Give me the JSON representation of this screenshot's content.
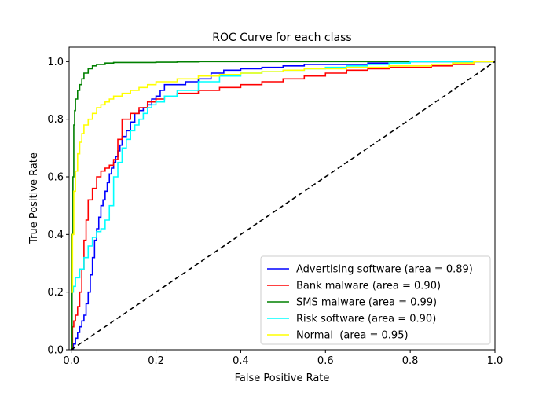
{
  "chart_data": {
    "type": "line",
    "title": "ROC Curve for each class",
    "xlabel": "False Positive Rate",
    "ylabel": "True Positive Rate",
    "xlim": [
      -0.005,
      1.0
    ],
    "ylim": [
      0.0,
      1.05
    ],
    "xticks": [
      0.0,
      0.2,
      0.4,
      0.6,
      0.8,
      1.0
    ],
    "xtick_labels": [
      "0.0",
      "0.2",
      "0.4",
      "0.6",
      "0.8",
      "1.0"
    ],
    "yticks": [
      0.0,
      0.2,
      0.4,
      0.6,
      0.8,
      1.0
    ],
    "ytick_labels": [
      "0.0",
      "0.2",
      "0.4",
      "0.6",
      "0.8",
      "1.0"
    ],
    "grid": false,
    "legend_position": "lower-right",
    "series": [
      {
        "name": "Advertising software (area = 0.89)",
        "color": "#0000ff",
        "step": true,
        "x": [
          0.0,
          0.005,
          0.01,
          0.015,
          0.02,
          0.025,
          0.03,
          0.035,
          0.04,
          0.045,
          0.05,
          0.055,
          0.06,
          0.065,
          0.07,
          0.075,
          0.08,
          0.085,
          0.09,
          0.095,
          0.1,
          0.105,
          0.11,
          0.115,
          0.12,
          0.13,
          0.14,
          0.15,
          0.16,
          0.17,
          0.18,
          0.19,
          0.2,
          0.21,
          0.22,
          0.24,
          0.27,
          0.3,
          0.33,
          0.36,
          0.4,
          0.45,
          0.5,
          0.55,
          0.6,
          0.65,
          0.7,
          0.75,
          0.8,
          0.85,
          0.9,
          0.95,
          1.0
        ],
        "y": [
          0.0,
          0.02,
          0.04,
          0.06,
          0.08,
          0.1,
          0.12,
          0.16,
          0.2,
          0.26,
          0.32,
          0.38,
          0.42,
          0.46,
          0.5,
          0.52,
          0.55,
          0.58,
          0.61,
          0.63,
          0.65,
          0.67,
          0.69,
          0.71,
          0.74,
          0.76,
          0.79,
          0.82,
          0.83,
          0.84,
          0.85,
          0.87,
          0.88,
          0.9,
          0.92,
          0.92,
          0.93,
          0.94,
          0.96,
          0.97,
          0.975,
          0.98,
          0.985,
          0.99,
          0.99,
          0.99,
          0.995,
          0.995,
          1.0,
          1.0,
          1.0,
          1.0,
          1.0
        ]
      },
      {
        "name": "Bank malware (area = 0.90)",
        "color": "#ff0000",
        "step": true,
        "x": [
          0.0,
          0.003,
          0.006,
          0.01,
          0.015,
          0.02,
          0.025,
          0.03,
          0.035,
          0.04,
          0.05,
          0.06,
          0.07,
          0.08,
          0.09,
          0.1,
          0.11,
          0.12,
          0.14,
          0.16,
          0.18,
          0.2,
          0.22,
          0.25,
          0.3,
          0.35,
          0.4,
          0.45,
          0.5,
          0.55,
          0.6,
          0.65,
          0.7,
          0.75,
          0.8,
          0.85,
          0.9,
          0.95,
          1.0
        ],
        "y": [
          0.0,
          0.08,
          0.1,
          0.12,
          0.15,
          0.2,
          0.28,
          0.38,
          0.45,
          0.52,
          0.56,
          0.6,
          0.62,
          0.63,
          0.64,
          0.66,
          0.73,
          0.8,
          0.82,
          0.84,
          0.86,
          0.87,
          0.88,
          0.89,
          0.9,
          0.91,
          0.92,
          0.93,
          0.94,
          0.95,
          0.96,
          0.97,
          0.975,
          0.98,
          0.98,
          0.985,
          0.99,
          1.0,
          1.0
        ]
      },
      {
        "name": "SMS malware (area = 0.99)",
        "color": "#008000",
        "step": true,
        "x": [
          0.0,
          0.002,
          0.004,
          0.006,
          0.008,
          0.01,
          0.015,
          0.02,
          0.025,
          0.03,
          0.04,
          0.05,
          0.06,
          0.08,
          0.1,
          0.15,
          0.2,
          0.25,
          0.3,
          0.4,
          0.5,
          0.6,
          0.7,
          0.8,
          0.9,
          1.0
        ],
        "y": [
          0.0,
          0.4,
          0.6,
          0.78,
          0.83,
          0.87,
          0.9,
          0.92,
          0.94,
          0.96,
          0.975,
          0.985,
          0.99,
          0.995,
          0.997,
          0.997,
          0.998,
          0.999,
          1.0,
          1.0,
          1.0,
          1.0,
          1.0,
          1.0,
          1.0,
          1.0
        ]
      },
      {
        "name": "Risk software (area = 0.90)",
        "color": "#00ffff",
        "step": true,
        "x": [
          0.0,
          0.005,
          0.01,
          0.02,
          0.03,
          0.04,
          0.05,
          0.06,
          0.07,
          0.08,
          0.09,
          0.1,
          0.11,
          0.12,
          0.13,
          0.14,
          0.15,
          0.16,
          0.17,
          0.18,
          0.19,
          0.2,
          0.22,
          0.25,
          0.3,
          0.35,
          0.4,
          0.45,
          0.5,
          0.55,
          0.6,
          0.65,
          0.7,
          0.75,
          0.8,
          0.85,
          0.9,
          0.95,
          1.0
        ],
        "y": [
          0.2,
          0.22,
          0.25,
          0.28,
          0.32,
          0.36,
          0.39,
          0.41,
          0.42,
          0.45,
          0.5,
          0.6,
          0.65,
          0.7,
          0.73,
          0.76,
          0.78,
          0.8,
          0.82,
          0.84,
          0.85,
          0.86,
          0.88,
          0.9,
          0.93,
          0.95,
          0.96,
          0.965,
          0.97,
          0.975,
          0.98,
          0.985,
          0.99,
          0.995,
          1.0,
          1.0,
          1.0,
          1.0,
          1.0
        ]
      },
      {
        "name": "Normal  (area = 0.95)",
        "color": "#ffff00",
        "step": true,
        "x": [
          0.0,
          0.003,
          0.006,
          0.01,
          0.015,
          0.02,
          0.025,
          0.03,
          0.04,
          0.05,
          0.06,
          0.07,
          0.08,
          0.09,
          0.1,
          0.12,
          0.14,
          0.16,
          0.18,
          0.2,
          0.25,
          0.3,
          0.35,
          0.4,
          0.45,
          0.5,
          0.55,
          0.6,
          0.65,
          0.7,
          0.75,
          0.8,
          0.85,
          0.9,
          0.95,
          1.0
        ],
        "y": [
          0.2,
          0.4,
          0.55,
          0.62,
          0.68,
          0.72,
          0.75,
          0.78,
          0.8,
          0.82,
          0.84,
          0.85,
          0.86,
          0.87,
          0.88,
          0.89,
          0.9,
          0.91,
          0.92,
          0.93,
          0.94,
          0.95,
          0.955,
          0.96,
          0.965,
          0.97,
          0.975,
          0.975,
          0.98,
          0.98,
          0.985,
          0.985,
          0.99,
          0.995,
          1.0,
          1.0
        ]
      }
    ],
    "reference_line": {
      "x": [
        0.0,
        1.0
      ],
      "y": [
        0.0,
        1.0
      ],
      "color": "#000000",
      "style": "dashed"
    }
  }
}
